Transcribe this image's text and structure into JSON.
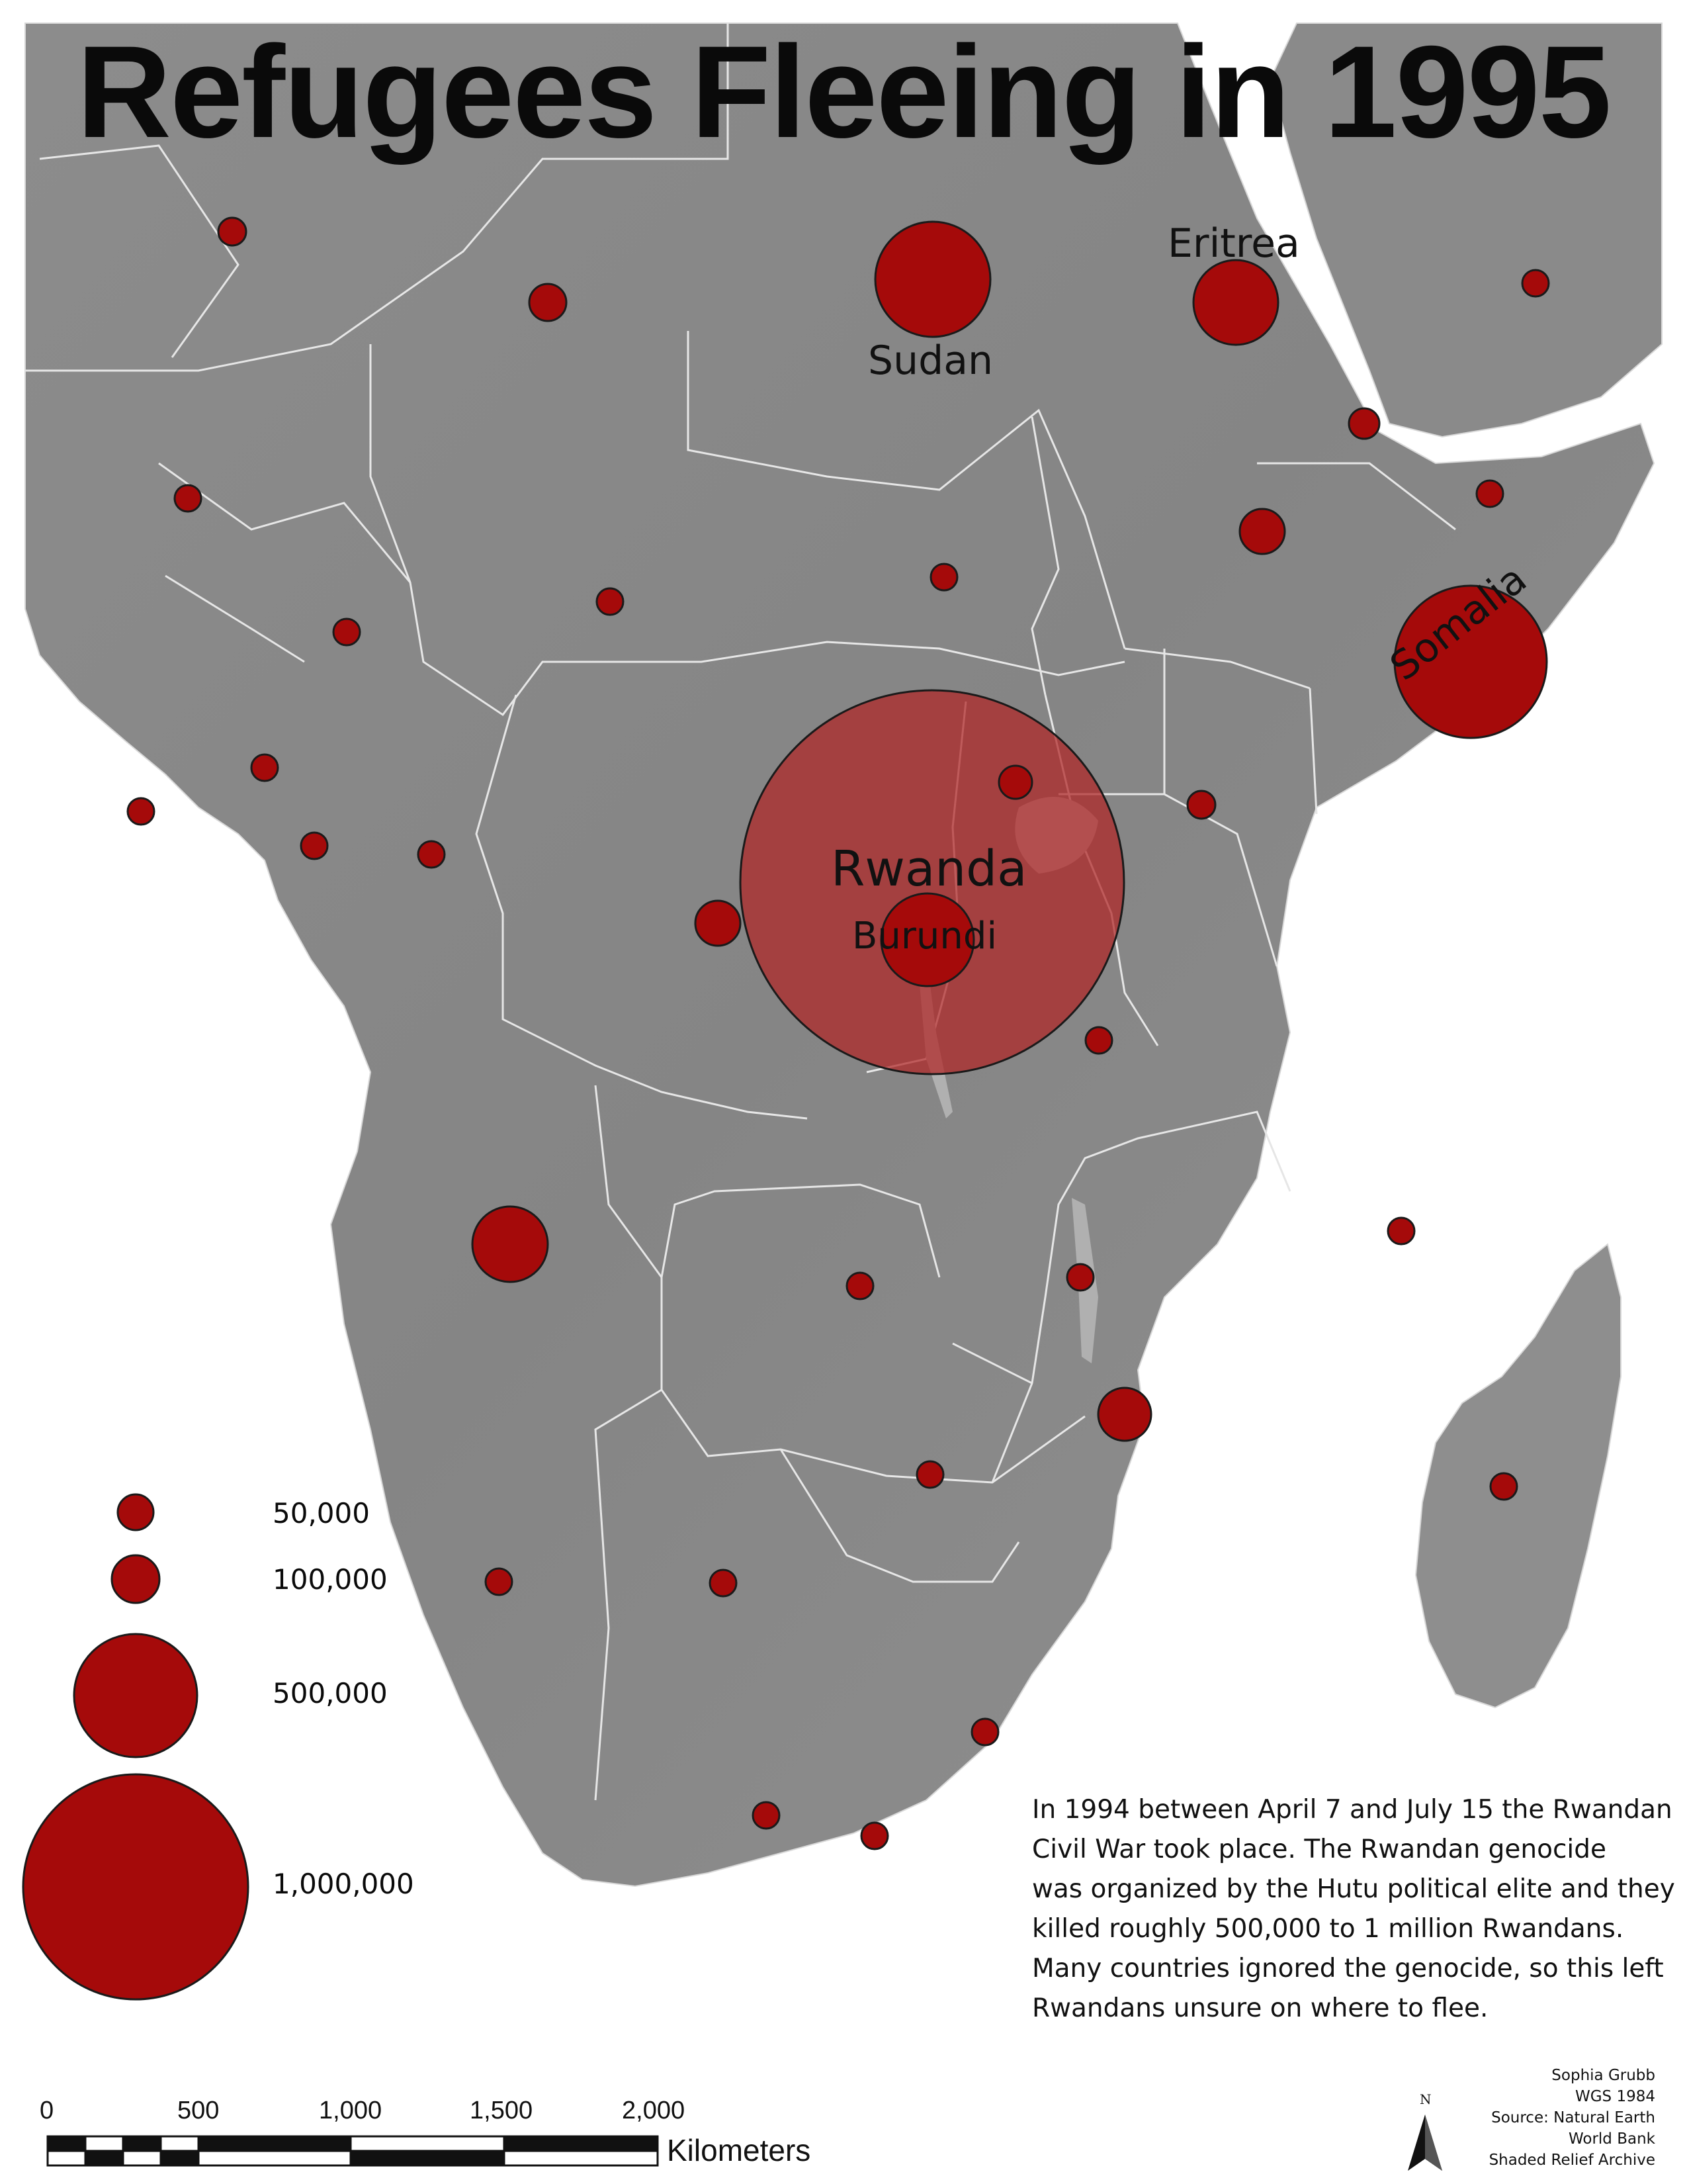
{
  "title": "Refugees Fleeing in 1995",
  "colors": {
    "circle_fill": "#a50a0a",
    "circle_large_fill": "#b22a2a",
    "land": "#8f8f8f",
    "border": "#e8e8e8"
  },
  "country_labels": {
    "sudan": "Sudan",
    "eritrea": "Eritrea",
    "somalia": "Somalia",
    "rwanda": "Rwanda",
    "burundi": "Burundi"
  },
  "legend": {
    "entries": [
      {
        "label": "50,000",
        "value": 50000
      },
      {
        "label": "100,000",
        "value": 100000
      },
      {
        "label": "500,000",
        "value": 500000
      },
      {
        "label": "1,000,000",
        "value": 1000000
      }
    ]
  },
  "note": {
    "lines": [
      "In 1994 between April 7 and July 15 the Rwandan",
      "Civil War took place. The Rwandan genocide",
      "was organized by the Hutu political elite and they",
      "killed roughly 500,000 to 1 million Rwandans.",
      "Many countries ignored the genocide, so this left",
      "Rwandans unsure on where to flee."
    ]
  },
  "credits": [
    "Sophia Grubb",
    "WGS 1984",
    "Source: Natural Earth",
    "World Bank",
    "Shaded Relief Archive"
  ],
  "scale_bar": {
    "ticks": [
      "0",
      "500",
      "1,000",
      "1,500",
      "2,000"
    ],
    "unit": "Kilometers"
  },
  "north_arrow": {
    "label": "N",
    "icon": "north-arrow-icon"
  }
}
